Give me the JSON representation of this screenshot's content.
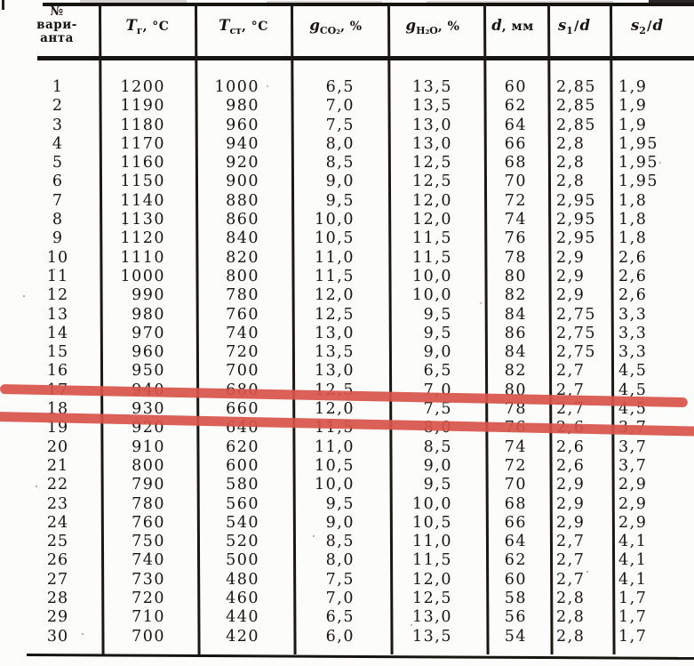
{
  "page": {
    "background": "#fcfcfb",
    "ink_color": "#17150f",
    "highlight_color": "#d8544a"
  },
  "table": {
    "headers": [
      {
        "lines": [
          "№",
          "вари-",
          "анта"
        ]
      },
      {
        "var": "T",
        "sub": "г",
        "rest": ", °C"
      },
      {
        "var": "T",
        "sub": "ст",
        "rest": ", °C"
      },
      {
        "var": "g",
        "sub": "CO₂",
        "rest": ", %"
      },
      {
        "var": "g",
        "sub": "H₂O",
        "rest": ", %"
      },
      {
        "var": "d",
        "rest": ", мм"
      },
      {
        "var": "s",
        "sub": "1",
        "slash": "/",
        "var2": "d"
      },
      {
        "var": "s",
        "sub": "2",
        "slash": "/",
        "var2": "d"
      }
    ],
    "rows": [
      [
        "1",
        "1200",
        "1000",
        "6,5",
        "13,5",
        "60",
        "2,85",
        "1,9"
      ],
      [
        "2",
        "1190",
        "980",
        "7,0",
        "13,5",
        "62",
        "2,85",
        "1,9"
      ],
      [
        "3",
        "1180",
        "960",
        "7,5",
        "13,0",
        "64",
        "2,85",
        "1,9"
      ],
      [
        "4",
        "1170",
        "940",
        "8,0",
        "13,0",
        "66",
        "2,8",
        "1,95"
      ],
      [
        "5",
        "1160",
        "920",
        "8,5",
        "12,5",
        "68",
        "2,8",
        "1,95"
      ],
      [
        "6",
        "1150",
        "900",
        "9,0",
        "12,5",
        "70",
        "2,8",
        "1,95"
      ],
      [
        "7",
        "1140",
        "880",
        "9,5",
        "12,0",
        "72",
        "2,95",
        "1,8"
      ],
      [
        "8",
        "1130",
        "860",
        "10,0",
        "12,0",
        "74",
        "2,95",
        "1,8"
      ],
      [
        "9",
        "1120",
        "840",
        "10,5",
        "11,5",
        "76",
        "2,95",
        "1,8"
      ],
      [
        "10",
        "1110",
        "820",
        "11,0",
        "11,5",
        "78",
        "2,9",
        "2,6"
      ],
      [
        "11",
        "1000",
        "800",
        "11,5",
        "10,0",
        "80",
        "2,9",
        "2,6"
      ],
      [
        "12",
        "990",
        "780",
        "12,0",
        "10,0",
        "82",
        "2,9",
        "2,6"
      ],
      [
        "13",
        "980",
        "760",
        "12,5",
        "9,5",
        "84",
        "2,75",
        "3,3"
      ],
      [
        "14",
        "970",
        "740",
        "13,0",
        "9,5",
        "86",
        "2,75",
        "3,3"
      ],
      [
        "15",
        "960",
        "720",
        "13,5",
        "9,0",
        "84",
        "2,75",
        "3,3"
      ],
      [
        "16",
        "950",
        "700",
        "13,0",
        "6,5",
        "82",
        "2,7",
        "4,5"
      ],
      [
        "17",
        "940",
        "680",
        "12,5",
        "7,0",
        "80",
        "2,7",
        "4,5"
      ],
      [
        "18",
        "930",
        "660",
        "12,0",
        "7,5",
        "78",
        "2,7",
        "4,5"
      ],
      [
        "19",
        "920",
        "640",
        "11,5",
        "8,0",
        "76",
        "2,6",
        "3,7"
      ],
      [
        "20",
        "910",
        "620",
        "11,0",
        "8,5",
        "74",
        "2,6",
        "3,7"
      ],
      [
        "21",
        "800",
        "600",
        "10,5",
        "9,0",
        "72",
        "2,6",
        "3,7"
      ],
      [
        "22",
        "790",
        "580",
        "10,0",
        "9,5",
        "70",
        "2,9",
        "2,9"
      ],
      [
        "23",
        "780",
        "560",
        "9,5",
        "10,0",
        "68",
        "2,9",
        "2,9"
      ],
      [
        "24",
        "760",
        "540",
        "9,0",
        "10,5",
        "66",
        "2,9",
        "2,9"
      ],
      [
        "25",
        "750",
        "520",
        "8,5",
        "11,0",
        "64",
        "2,7",
        "4,1"
      ],
      [
        "26",
        "740",
        "500",
        "8,0",
        "11,5",
        "62",
        "2,7",
        "4,1"
      ],
      [
        "27",
        "730",
        "480",
        "7,5",
        "12,0",
        "60",
        "2,7",
        "4,1"
      ],
      [
        "28",
        "720",
        "460",
        "7,0",
        "12,5",
        "58",
        "2,8",
        "1,7"
      ],
      [
        "29",
        "710",
        "440",
        "6,5",
        "13,0",
        "56",
        "2,8",
        "1,7"
      ],
      [
        "30",
        "700",
        "420",
        "6,0",
        "13,5",
        "54",
        "2,8",
        "1,7"
      ]
    ],
    "highlighted_row": "18"
  }
}
